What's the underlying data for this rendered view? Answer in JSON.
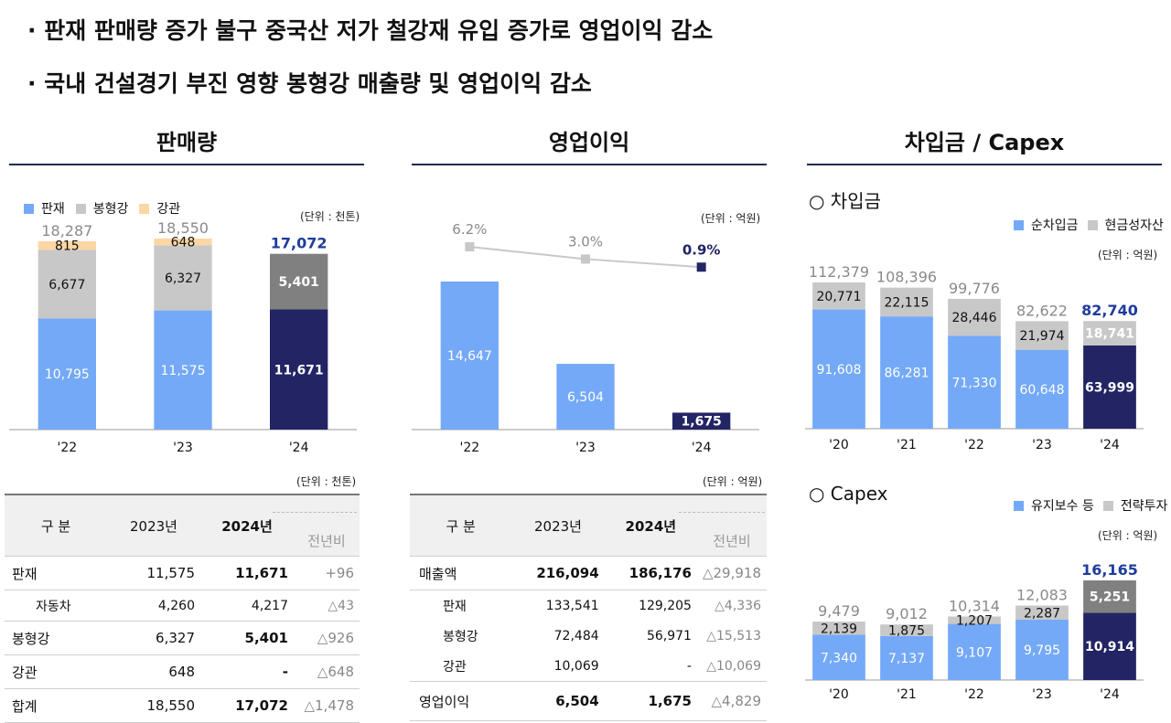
{
  "bullets": [
    "· 판재 판매량 증가 불구 중국산 저가 철강재 유입 증가로 영업이익 감소",
    "· 국내 건설경기 부진 영향 봉형강 매출량 및 영업이익 감소"
  ],
  "colors": {
    "light_blue": "#74a9f7",
    "grey": "#c8c8c8",
    "peach": "#fdd6a3",
    "navy": "#232464",
    "dark_grey": "#808080",
    "highlight_text": "#1f3c9e"
  },
  "sales": {
    "title": "판매량",
    "unit": "(단위 : 천톤)",
    "legend": [
      "판재",
      "봉형강",
      "강관"
    ],
    "table_unit": "(단위 : 천톤)",
    "table": {
      "headers": [
        "구 분",
        "2023년",
        "2024년",
        "전년비"
      ],
      "rows": [
        {
          "label": "판재",
          "y2023": "11,575",
          "y2024": "11,671",
          "yoy": "+96"
        },
        {
          "label": "자동차",
          "y2023": "4,260",
          "y2024": "4,217",
          "yoy": "△43"
        },
        {
          "label": "봉형강",
          "y2023": "6,327",
          "y2024": "5,401",
          "yoy": "△926"
        },
        {
          "label": "강관",
          "y2023": "648",
          "y2024": "-",
          "yoy": "△648"
        },
        {
          "label": "합계",
          "y2023": "18,550",
          "y2024": "17,072",
          "yoy": "△1,478"
        }
      ]
    }
  },
  "op": {
    "title": "영업이익",
    "unit": "(단위 : 억원)",
    "table_unit": "(단위 : 억원)",
    "table": {
      "headers": [
        "구 분",
        "2023년",
        "2024년",
        "전년비"
      ],
      "rows": [
        {
          "label": "매출액",
          "y2023": "216,094",
          "y2024": "186,176",
          "yoy": "△29,918"
        },
        {
          "label": "판재",
          "y2023": "133,541",
          "y2024": "129,205",
          "yoy": "△4,336"
        },
        {
          "label": "봉형강",
          "y2023": "72,484",
          "y2024": "56,971",
          "yoy": "△15,513"
        },
        {
          "label": "강관",
          "y2023": "10,069",
          "y2024": "-",
          "yoy": "△10,069"
        },
        {
          "label": "영업이익",
          "y2023": "6,504",
          "y2024": "1,675",
          "yoy": "△4,829"
        }
      ]
    }
  },
  "debt": {
    "title": "차입금 / Capex",
    "debt_heading": "○ 차입금",
    "debt_legend": [
      "순차입금",
      "현금성자산"
    ],
    "debt_unit": "(단위 : 억원)",
    "capex_heading": "○ Capex",
    "capex_legend": [
      "유지보수 등",
      "전략투자"
    ],
    "capex_unit": "(단위 : 억원)"
  },
  "chart_data": [
    {
      "type": "bar",
      "stacked": true,
      "title": "판매량",
      "categories": [
        "'22",
        "'23",
        "'24"
      ],
      "series": [
        {
          "name": "판재",
          "values": [
            10795,
            11575,
            11671
          ],
          "labels": [
            "10,795",
            "11,575",
            "11,671"
          ]
        },
        {
          "name": "봉형강",
          "values": [
            6677,
            6327,
            5401
          ],
          "labels": [
            "6,677",
            "6,327",
            "5,401"
          ]
        },
        {
          "name": "강관",
          "values": [
            815,
            648,
            0
          ],
          "labels": [
            "815",
            "648",
            ""
          ]
        }
      ],
      "totals": [
        "18,287",
        "18,550",
        "17,072"
      ],
      "total_values": [
        18287,
        18550,
        17072
      ]
    },
    {
      "type": "bar",
      "title": "영업이익",
      "categories": [
        "'22",
        "'23",
        "'24"
      ],
      "values": [
        14647,
        6504,
        1675
      ],
      "labels": [
        "14,647",
        "6,504",
        "1,675"
      ],
      "line": {
        "values": [
          6.2,
          3.0,
          0.9
        ],
        "labels": [
          "6.2%",
          "3.0%",
          "0.9%"
        ]
      }
    },
    {
      "type": "bar",
      "stacked": true,
      "title": "차입금",
      "categories": [
        "'20",
        "'21",
        "'22",
        "'23",
        "'24"
      ],
      "series": [
        {
          "name": "순차입금",
          "values": [
            91608,
            86281,
            71330,
            60648,
            63999
          ],
          "labels": [
            "91,608",
            "86,281",
            "71,330",
            "60,648",
            "63,999"
          ]
        },
        {
          "name": "현금성자산",
          "values": [
            20771,
            22115,
            28446,
            21974,
            18741
          ],
          "labels": [
            "20,771",
            "22,115",
            "28,446",
            "21,974",
            "18,741"
          ]
        }
      ],
      "totals": [
        "112,379",
        "108,396",
        "99,776",
        "82,622",
        "82,740"
      ],
      "total_values": [
        112379,
        108396,
        99776,
        82622,
        82740
      ]
    },
    {
      "type": "bar",
      "stacked": true,
      "title": "Capex",
      "categories": [
        "'20",
        "'21",
        "'22",
        "'23",
        "'24"
      ],
      "series": [
        {
          "name": "유지보수 등",
          "values": [
            7340,
            7137,
            9107,
            9795,
            10914
          ],
          "labels": [
            "7,340",
            "7,137",
            "9,107",
            "9,795",
            "10,914"
          ]
        },
        {
          "name": "전략투자",
          "values": [
            2139,
            1875,
            1207,
            2287,
            5251
          ],
          "labels": [
            "2,139",
            "1,875",
            "1,207",
            "2,287",
            "5,251"
          ]
        }
      ],
      "totals": [
        "9,479",
        "9,012",
        "10,314",
        "12,083",
        "16,165"
      ],
      "total_values": [
        9479,
        9012,
        10314,
        12083,
        16165
      ]
    }
  ]
}
